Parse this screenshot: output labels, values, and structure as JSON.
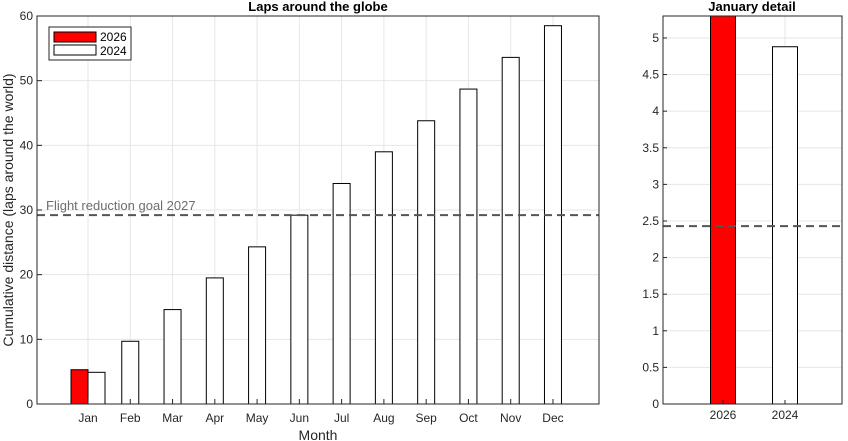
{
  "chart_data": [
    {
      "type": "bar",
      "title": "Laps around the globe",
      "xlabel": "Month",
      "ylabel": "Cumulative distance (laps around the world)",
      "categories": [
        "Jan",
        "Feb",
        "Mar",
        "Apr",
        "May",
        "Jun",
        "Jul",
        "Aug",
        "Sep",
        "Oct",
        "Nov",
        "Dec"
      ],
      "series": [
        {
          "name": "2026",
          "color": "#ff0000",
          "values": [
            5.3,
            null,
            null,
            null,
            null,
            null,
            null,
            null,
            null,
            null,
            null,
            null
          ]
        },
        {
          "name": "2024",
          "color": "#ffffff",
          "values": [
            4.9,
            9.7,
            14.6,
            19.5,
            24.3,
            29.2,
            34.1,
            39.0,
            43.8,
            48.7,
            53.6,
            58.5
          ]
        }
      ],
      "ylim": [
        0,
        60
      ],
      "yticks": [
        0,
        10,
        20,
        30,
        40,
        50,
        60
      ],
      "reference_line": {
        "value": 29.2,
        "label": "Flight reduction goal 2027",
        "style": "dashed",
        "color": "#555555"
      },
      "grid": true,
      "legend": "top-left"
    },
    {
      "type": "bar",
      "title": "January detail",
      "categories": [
        "2026",
        "2024"
      ],
      "values": [
        5.3,
        4.88
      ],
      "colors": [
        "#ff0000",
        "#ffffff"
      ],
      "ylim": [
        0,
        5.3
      ],
      "yticks": [
        0,
        0.5,
        1,
        1.5,
        2,
        2.5,
        3,
        3.5,
        4,
        4.5,
        5
      ],
      "reference_line": {
        "value": 2.43,
        "style": "dashed",
        "color": "#555555"
      },
      "grid": true
    }
  ]
}
